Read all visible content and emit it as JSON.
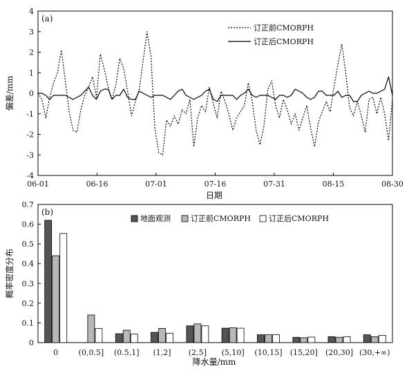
{
  "chart_data": [
    {
      "panel_label": "(a)",
      "type": "line",
      "xlabel": "日期",
      "ylabel": "偏差/mm",
      "ylim": [
        -4,
        4
      ],
      "xlim": [
        0,
        91
      ],
      "x_tick_labels": [
        "06-01",
        "06-16",
        "07-01",
        "07-16",
        "07-31",
        "08-15",
        "08-30"
      ],
      "y_tick_labels": [
        "4",
        "3",
        "2",
        "1",
        "0",
        "-1",
        "-2",
        "-3",
        "-4"
      ],
      "grid": false,
      "legend_position": "top-right",
      "series": [
        {
          "name": "订正前CMORPH",
          "style": "dotted",
          "color": "#000000",
          "points": [
            [
              0,
              0
            ],
            [
              1,
              -0.3
            ],
            [
              2,
              -1.2
            ],
            [
              3,
              -0.2
            ],
            [
              4,
              0.5
            ],
            [
              5,
              1.0
            ],
            [
              6,
              2.1
            ],
            [
              7,
              0.6
            ],
            [
              8,
              -0.9
            ],
            [
              9,
              -1.8
            ],
            [
              10,
              -1.9
            ],
            [
              11,
              -0.8
            ],
            [
              12,
              -0.1
            ],
            [
              13,
              0.3
            ],
            [
              14,
              0.8
            ],
            [
              15,
              -0.2
            ],
            [
              16,
              1.9
            ],
            [
              17,
              1.2
            ],
            [
              18,
              0.3
            ],
            [
              19,
              -0.3
            ],
            [
              20,
              0.4
            ],
            [
              21,
              1.7
            ],
            [
              22,
              1.2
            ],
            [
              23,
              0.1
            ],
            [
              24,
              -1.1
            ],
            [
              25,
              -0.4
            ],
            [
              26,
              0.2
            ],
            [
              27,
              1.6
            ],
            [
              28,
              3.0
            ],
            [
              29,
              1.8
            ],
            [
              30,
              -1.7
            ],
            [
              31,
              -2.9
            ],
            [
              32,
              -3.0
            ],
            [
              33,
              -1.3
            ],
            [
              34,
              -1.6
            ],
            [
              35,
              -1.1
            ],
            [
              36,
              -1.5
            ],
            [
              37,
              -0.8
            ],
            [
              38,
              -1.0
            ],
            [
              39,
              -0.3
            ],
            [
              40,
              -2.6
            ],
            [
              41,
              -1.2
            ],
            [
              42,
              -0.6
            ],
            [
              43,
              -0.9
            ],
            [
              44,
              0.3
            ],
            [
              45,
              -0.5
            ],
            [
              46,
              -1.2
            ],
            [
              47,
              0.1
            ],
            [
              48,
              -0.4
            ],
            [
              49,
              -1.0
            ],
            [
              50,
              -1.8
            ],
            [
              51,
              -1.2
            ],
            [
              52,
              -0.9
            ],
            [
              53,
              -0.6
            ],
            [
              54,
              0.5
            ],
            [
              55,
              -0.4
            ],
            [
              56,
              -1.8
            ],
            [
              57,
              -2.5
            ],
            [
              58,
              -1.6
            ],
            [
              59,
              0.2
            ],
            [
              60,
              0.6
            ],
            [
              61,
              -0.6
            ],
            [
              62,
              -1.2
            ],
            [
              63,
              -0.3
            ],
            [
              64,
              -0.8
            ],
            [
              65,
              -1.5
            ],
            [
              66,
              -1.0
            ],
            [
              67,
              -1.8
            ],
            [
              68,
              -1.2
            ],
            [
              69,
              -0.6
            ],
            [
              70,
              -1.7
            ],
            [
              71,
              -2.6
            ],
            [
              72,
              -1.4
            ],
            [
              73,
              -0.9
            ],
            [
              74,
              -0.4
            ],
            [
              75,
              -0.9
            ],
            [
              76,
              0.3
            ],
            [
              77,
              1.4
            ],
            [
              78,
              2.4
            ],
            [
              79,
              1.0
            ],
            [
              80,
              -0.7
            ],
            [
              81,
              -1.1
            ],
            [
              82,
              -0.4
            ],
            [
              83,
              -1.1
            ],
            [
              84,
              -1.9
            ],
            [
              85,
              -0.3
            ],
            [
              86,
              -0.2
            ],
            [
              87,
              -1.0
            ],
            [
              88,
              -0.2
            ],
            [
              89,
              -1.0
            ],
            [
              90,
              -2.3
            ],
            [
              91,
              -0.3
            ]
          ]
        },
        {
          "name": "订正后CMORPH",
          "style": "solid",
          "color": "#000000",
          "points": [
            [
              0,
              0
            ],
            [
              1,
              0
            ],
            [
              2,
              -0.1
            ],
            [
              3,
              -0.3
            ],
            [
              4,
              -0.1
            ],
            [
              5,
              -0.1
            ],
            [
              6,
              -0.1
            ],
            [
              7,
              -0.1
            ],
            [
              8,
              -0.2
            ],
            [
              9,
              -0.3
            ],
            [
              10,
              -0.2
            ],
            [
              11,
              -0.1
            ],
            [
              12,
              0.1
            ],
            [
              13,
              0.3
            ],
            [
              14,
              -0.1
            ],
            [
              15,
              -0.3
            ],
            [
              16,
              0.1
            ],
            [
              17,
              0.2
            ],
            [
              18,
              0.2
            ],
            [
              19,
              -0.3
            ],
            [
              20,
              -0.1
            ],
            [
              21,
              -0.1
            ],
            [
              22,
              0.2
            ],
            [
              23,
              -0.2
            ],
            [
              24,
              -0.3
            ],
            [
              25,
              -0.3
            ],
            [
              26,
              0.1
            ],
            [
              27,
              0
            ],
            [
              28,
              -0.1
            ],
            [
              29,
              -0.2
            ],
            [
              30,
              -0.1
            ],
            [
              31,
              -0.1
            ],
            [
              32,
              -0.1
            ],
            [
              33,
              -0.2
            ],
            [
              34,
              -0.3
            ],
            [
              35,
              -0.1
            ],
            [
              36,
              0.1
            ],
            [
              37,
              0.2
            ],
            [
              38,
              -0.1
            ],
            [
              39,
              -0.2
            ],
            [
              40,
              -0.3
            ],
            [
              41,
              -0.2
            ],
            [
              42,
              -0.1
            ],
            [
              43,
              0.1
            ],
            [
              44,
              0.2
            ],
            [
              45,
              -0.3
            ],
            [
              46,
              -0.4
            ],
            [
              47,
              -0.1
            ],
            [
              48,
              -0.1
            ],
            [
              49,
              -0.1
            ],
            [
              50,
              -0.1
            ],
            [
              51,
              -0.3
            ],
            [
              52,
              -0.1
            ],
            [
              53,
              0
            ],
            [
              54,
              0.2
            ],
            [
              55,
              -0.1
            ],
            [
              56,
              -0.2
            ],
            [
              57,
              -0.1
            ],
            [
              58,
              -0.1
            ],
            [
              59,
              -0.1
            ],
            [
              60,
              -0.2
            ],
            [
              61,
              -0.3
            ],
            [
              62,
              -0.1
            ],
            [
              63,
              -0.1
            ],
            [
              64,
              -0.2
            ],
            [
              65,
              -0.1
            ],
            [
              66,
              0.2
            ],
            [
              67,
              0.1
            ],
            [
              68,
              0
            ],
            [
              69,
              -0.2
            ],
            [
              70,
              -0.3
            ],
            [
              71,
              -0.2
            ],
            [
              72,
              0.1
            ],
            [
              73,
              0.1
            ],
            [
              74,
              -0.1
            ],
            [
              75,
              -0.1
            ],
            [
              76,
              -0.1
            ],
            [
              77,
              0.1
            ],
            [
              78,
              -0.2
            ],
            [
              79,
              -0.1
            ],
            [
              80,
              -0.1
            ],
            [
              81,
              -0.4
            ],
            [
              82,
              -0.4
            ],
            [
              83,
              -0.1
            ],
            [
              84,
              0
            ],
            [
              85,
              0.1
            ],
            [
              86,
              0
            ],
            [
              87,
              0
            ],
            [
              88,
              0.1
            ],
            [
              89,
              0.2
            ],
            [
              90,
              0.8
            ],
            [
              91,
              -0.1
            ]
          ]
        }
      ]
    },
    {
      "panel_label": "(b)",
      "type": "bar",
      "xlabel": "降水量/mm",
      "ylabel": "概率密度分布",
      "ylim": [
        0,
        0.7
      ],
      "y_tick_labels": [
        "0",
        "0.1",
        "0.2",
        "0.3",
        "0.4",
        "0.5",
        "0.6",
        "0.7"
      ],
      "grid": false,
      "legend_position": "top-right",
      "categories": [
        "0",
        "(0,0.5]",
        "(0.5,1]",
        "(1,2]",
        "(2,5]",
        "(5,10]",
        "(10,15]",
        "(15,20]",
        "(20,30]",
        "(30,+∞)"
      ],
      "series": [
        {
          "name": "地面观测",
          "color": "#555555",
          "values": [
            0.62,
            0,
            0.045,
            0.052,
            0.085,
            0.073,
            0.04,
            0.027,
            0.03,
            0.04
          ]
        },
        {
          "name": "订正前CMORPH",
          "color": "#b8b8b8",
          "values": [
            0.44,
            0.14,
            0.063,
            0.072,
            0.095,
            0.075,
            0.04,
            0.025,
            0.027,
            0.03
          ]
        },
        {
          "name": "订正后CMORPH",
          "color": "#ffffff",
          "values": [
            0.553,
            0.072,
            0.043,
            0.047,
            0.085,
            0.073,
            0.04,
            0.028,
            0.03,
            0.037
          ]
        }
      ]
    }
  ]
}
